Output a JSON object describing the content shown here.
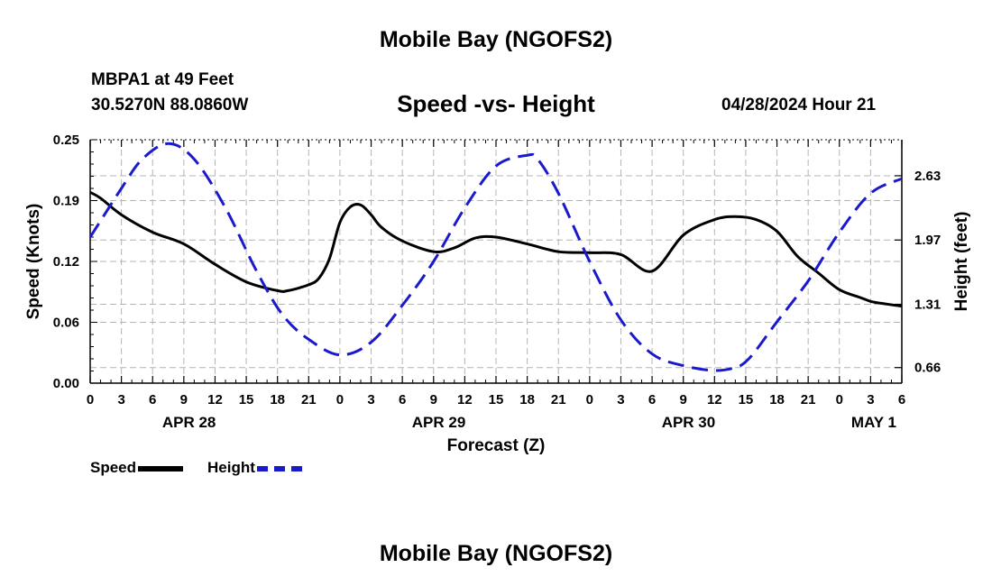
{
  "header": {
    "title": "Mobile Bay (NGOFS2)",
    "station": "MBPA1 at 49 Feet",
    "coords": "30.5270N  88.0860W",
    "subtitle": "Speed -vs- Height",
    "timestamp": "04/28/2024 Hour 21"
  },
  "footer": {
    "title": "Mobile Bay (NGOFS2)"
  },
  "legend": {
    "speed_label": "Speed",
    "height_label": "Height"
  },
  "colors": {
    "speed": "#000000",
    "height": "#1a1acc",
    "grid": "#b4b4b4"
  },
  "chart_data": {
    "type": "line",
    "title": "Speed -vs- Height",
    "xlabel": "Forecast (Z)",
    "ylabel": "Speed (Knots)",
    "y2label": "Height (feet)",
    "xlim": [
      0,
      78
    ],
    "ylim": [
      0,
      0.25
    ],
    "y2lim": [
      0.5,
      3.0
    ],
    "x_ticks": [
      0,
      3,
      6,
      9,
      12,
      15,
      18,
      21,
      24,
      27,
      30,
      33,
      36,
      39,
      42,
      45,
      48,
      51,
      54,
      57,
      60,
      63,
      66,
      69,
      72,
      75,
      78
    ],
    "x_tick_labels": [
      "0",
      "3",
      "6",
      "9",
      "12",
      "15",
      "18",
      "21",
      "0",
      "3",
      "6",
      "9",
      "12",
      "15",
      "18",
      "21",
      "0",
      "3",
      "6",
      "9",
      "12",
      "15",
      "18",
      "21",
      "0",
      "3",
      "6"
    ],
    "y_ticks": [
      0,
      0.0625,
      0.125,
      0.1875,
      0.25
    ],
    "y_tick_labels": [
      "0.00",
      "0.06",
      "0.12",
      "0.19",
      "0.25"
    ],
    "y2_ticks": [
      0.66,
      1.31,
      1.97,
      2.63
    ],
    "y2_tick_labels": [
      "0.66",
      "1.31",
      "1.97",
      "2.63"
    ],
    "date_labels": [
      {
        "x": 9.5,
        "label": "APR 28"
      },
      {
        "x": 33.5,
        "label": "APR 29"
      },
      {
        "x": 57.5,
        "label": "APR 30"
      },
      {
        "x": 78,
        "label": "MAY 1"
      }
    ],
    "grid": true,
    "series": [
      {
        "name": "Speed",
        "axis": "left",
        "x": [
          0,
          1,
          3,
          6,
          9,
          12,
          15,
          18,
          19,
          21,
          22,
          23,
          24,
          25,
          26,
          27,
          28,
          30,
          33,
          35,
          37,
          39,
          42,
          45,
          48,
          51,
          54,
          57,
          60,
          62,
          64,
          66,
          68,
          70,
          72,
          74,
          75,
          76,
          78
        ],
        "values": [
          0.196,
          0.19,
          0.173,
          0.155,
          0.143,
          0.122,
          0.104,
          0.095,
          0.095,
          0.101,
          0.108,
          0.128,
          0.165,
          0.181,
          0.183,
          0.173,
          0.16,
          0.146,
          0.135,
          0.139,
          0.149,
          0.15,
          0.143,
          0.135,
          0.134,
          0.132,
          0.115,
          0.152,
          0.168,
          0.171,
          0.168,
          0.156,
          0.13,
          0.113,
          0.096,
          0.088,
          0.084,
          0.082,
          0.079
        ]
      },
      {
        "name": "Height",
        "axis": "right",
        "x": [
          0,
          3,
          5,
          7.5,
          10,
          13,
          16,
          18.5,
          21,
          24,
          27,
          30,
          33,
          36,
          39,
          42,
          43,
          45,
          48,
          51,
          54,
          57,
          60,
          62,
          63,
          64,
          66,
          69,
          72,
          75,
          78
        ],
        "values": [
          2.0,
          2.5,
          2.8,
          2.96,
          2.8,
          2.3,
          1.65,
          1.2,
          0.95,
          0.79,
          0.92,
          1.3,
          1.75,
          2.3,
          2.73,
          2.84,
          2.8,
          2.45,
          1.75,
          1.15,
          0.8,
          0.68,
          0.63,
          0.66,
          0.72,
          0.84,
          1.13,
          1.55,
          2.05,
          2.45,
          2.6
        ]
      }
    ]
  }
}
